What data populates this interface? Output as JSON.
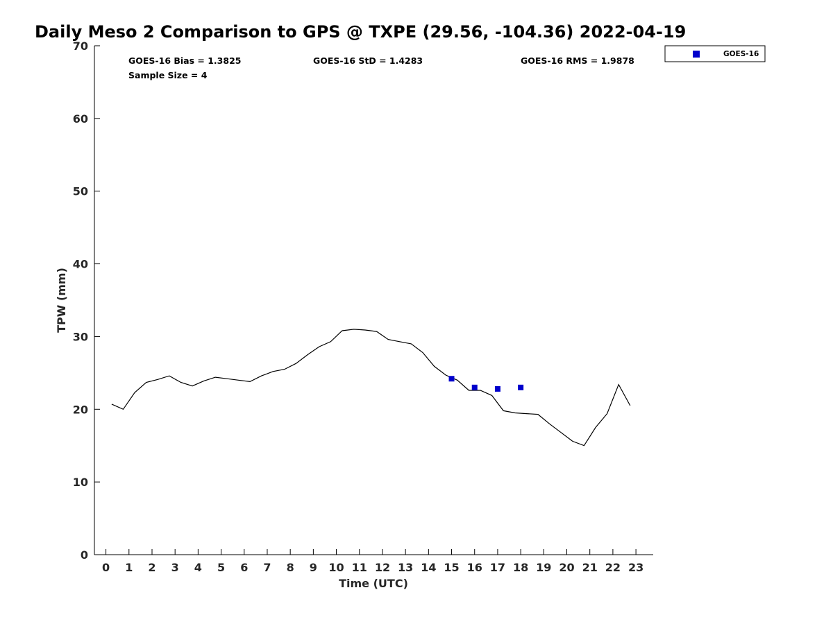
{
  "chart_data": {
    "type": "line",
    "title": "Daily Meso 2 Comparison to GPS @ TXPE (29.56, -104.36) 2022-04-19",
    "xlabel": "Time (UTC)",
    "ylabel": "TPW (mm)",
    "xlim": [
      -0.5,
      23.75
    ],
    "ylim": [
      0,
      70
    ],
    "x_ticks": [
      0,
      1,
      2,
      3,
      4,
      5,
      6,
      7,
      8,
      9,
      10,
      11,
      12,
      13,
      14,
      15,
      16,
      17,
      18,
      19,
      20,
      21,
      22,
      23
    ],
    "y_ticks": [
      0,
      10,
      20,
      30,
      40,
      50,
      60,
      70
    ],
    "grid": false,
    "legend_position": "top-right-outside",
    "stats": {
      "bias": "GOES-16 Bias = 1.3825",
      "std": "GOES-16 StD = 1.4283",
      "rms": "GOES-16 RMS = 1.9878",
      "sample": "Sample Size = 4"
    },
    "series": [
      {
        "kind": "line",
        "color": "#000000",
        "x": [
          0.25,
          0.75,
          1.25,
          1.75,
          2.25,
          2.75,
          3.25,
          3.75,
          4.25,
          4.75,
          5.25,
          5.75,
          6.25,
          6.75,
          7.25,
          7.75,
          8.25,
          8.75,
          9.25,
          9.75,
          10.25,
          10.75,
          11.25,
          11.75,
          12.25,
          12.75,
          13.25,
          13.75,
          14.25,
          14.75,
          15.25,
          15.75,
          16.25,
          16.75,
          17.25,
          17.75,
          18.25,
          18.75,
          19.25,
          19.75,
          20.25,
          20.75,
          21.25,
          21.75,
          22.25,
          22.75
        ],
        "y": [
          20.7,
          20.0,
          22.3,
          23.7,
          24.1,
          24.6,
          23.7,
          23.2,
          23.9,
          24.4,
          24.2,
          24.0,
          23.8,
          24.6,
          25.2,
          25.5,
          26.3,
          27.5,
          28.6,
          29.3,
          30.8,
          31.0,
          30.9,
          30.7,
          29.6,
          29.3,
          29.0,
          27.8,
          25.9,
          24.7,
          24.0,
          22.6,
          22.6,
          21.9,
          19.8,
          19.5,
          19.4,
          19.3,
          18.0,
          16.8,
          15.6,
          15.0,
          17.5,
          19.4,
          23.4,
          20.5
        ]
      },
      {
        "kind": "scatter",
        "name": "GOES-16",
        "color": "#0000cc",
        "x": [
          15,
          16,
          17,
          18
        ],
        "y": [
          24.2,
          23.0,
          22.8,
          23.0
        ]
      }
    ]
  }
}
